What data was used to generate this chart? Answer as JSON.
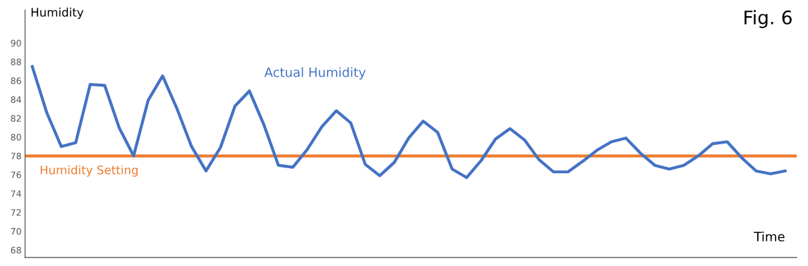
{
  "chart_data": {
    "type": "line",
    "title": "Fig. 6",
    "xlabel": "Time",
    "ylabel": "Humidity",
    "categories": [
      null,
      null,
      null,
      null,
      null,
      null,
      null,
      null,
      null,
      null,
      null,
      null,
      null,
      null,
      null,
      null,
      null,
      null,
      null,
      null,
      null,
      null,
      null,
      null,
      null,
      null,
      null,
      null,
      null,
      null,
      null,
      null,
      null,
      null,
      null,
      null,
      null,
      null,
      null,
      null,
      null,
      null,
      null,
      null,
      null,
      null,
      null,
      null,
      null,
      null,
      null,
      null,
      null
    ],
    "series": [
      {
        "name": "Actual Humidity",
        "color": "#4472c4",
        "values": [
          87.5,
          82.6,
          79.0,
          79.4,
          85.6,
          85.5,
          81.0,
          78.0,
          83.9,
          86.5,
          83.0,
          79.0,
          76.4,
          78.9,
          83.3,
          84.9,
          81.3,
          77.0,
          76.8,
          78.7,
          81.1,
          82.8,
          81.5,
          77.1,
          75.9,
          77.3,
          79.9,
          81.7,
          80.5,
          76.6,
          75.7,
          77.5,
          79.8,
          80.9,
          79.7,
          77.6,
          76.3,
          76.3,
          77.4,
          78.6,
          79.5,
          79.9,
          78.3,
          77.0,
          76.6,
          77.0,
          78.0,
          79.3,
          79.5,
          77.8,
          76.4,
          76.1,
          76.4
        ]
      }
    ],
    "ref_lines": [
      {
        "axis": "y",
        "value": 78,
        "label": "Humidity Setting",
        "color": "#ed7d31",
        "line_style": "solid"
      }
    ],
    "ylim": [
      67.2,
      93.5
    ],
    "yticks": [
      68,
      70,
      72,
      74,
      76,
      78,
      80,
      82,
      84,
      86,
      88,
      90
    ],
    "grid": false,
    "legend": false,
    "marker": "none",
    "line_style": "solid"
  }
}
